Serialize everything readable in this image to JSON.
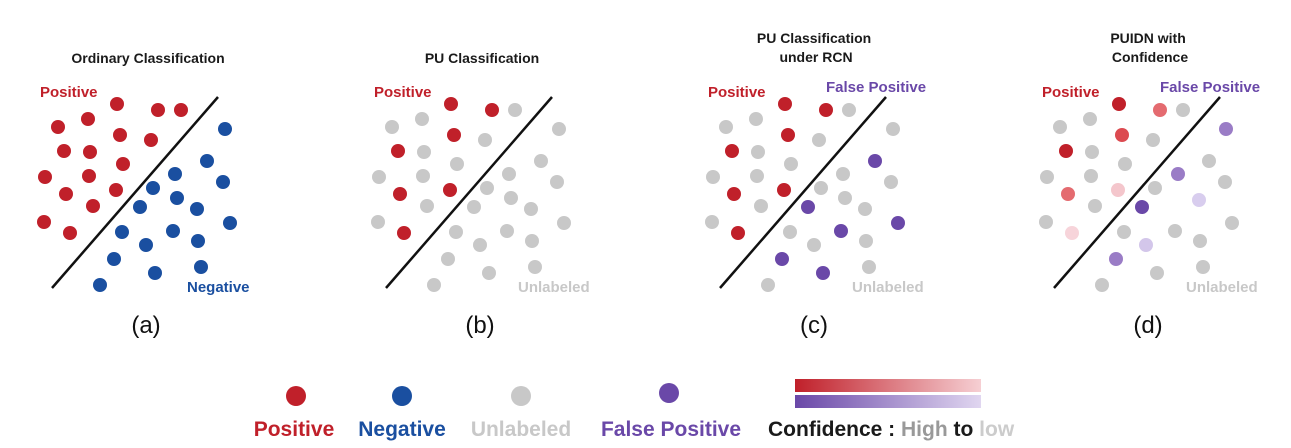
{
  "colors": {
    "positive": "#c0202a",
    "negative": "#1a4fa0",
    "unlabeled": "#c8c8c8",
    "false_positive": "#6a48a8",
    "text": "#1a1a1a"
  },
  "panels": [
    {
      "id": "a",
      "title_lines": [
        "Ordinary Classification"
      ],
      "sublabel": "(a)",
      "labels": {
        "positive": "Positive",
        "negative": "Negative"
      }
    },
    {
      "id": "b",
      "title_lines": [
        "PU Classification"
      ],
      "sublabel": "(b)",
      "labels": {
        "positive": "Positive",
        "unlabeled": "Unlabeled"
      }
    },
    {
      "id": "c",
      "title_lines": [
        "PU Classification",
        "under RCN"
      ],
      "sublabel": "(c)",
      "labels": {
        "positive": "Positive",
        "false_positive": "False Positive",
        "unlabeled": "Unlabeled"
      }
    },
    {
      "id": "d",
      "title_lines": [
        "PUIDN with",
        "Confidence"
      ],
      "sublabel": "(d)",
      "labels": {
        "positive": "Positive",
        "false_positive": "False Positive",
        "unlabeled": "Unlabeled"
      }
    }
  ],
  "legend": {
    "items": [
      {
        "label": "Positive",
        "class": "positive"
      },
      {
        "label": "Negative",
        "class": "negative"
      },
      {
        "label": "Unlabeled",
        "class": "unlabeled"
      },
      {
        "label": "False Positive",
        "class": "false_positive"
      }
    ],
    "confidence": {
      "label": "Confidence",
      "separator": " : ",
      "high": "High",
      "to": " to ",
      "low": "low",
      "positive_gradient": [
        "#c0202a",
        "#f6cfd3"
      ],
      "false_positive_gradient": [
        "#6a48a8",
        "#e0d6f0"
      ]
    }
  }
}
